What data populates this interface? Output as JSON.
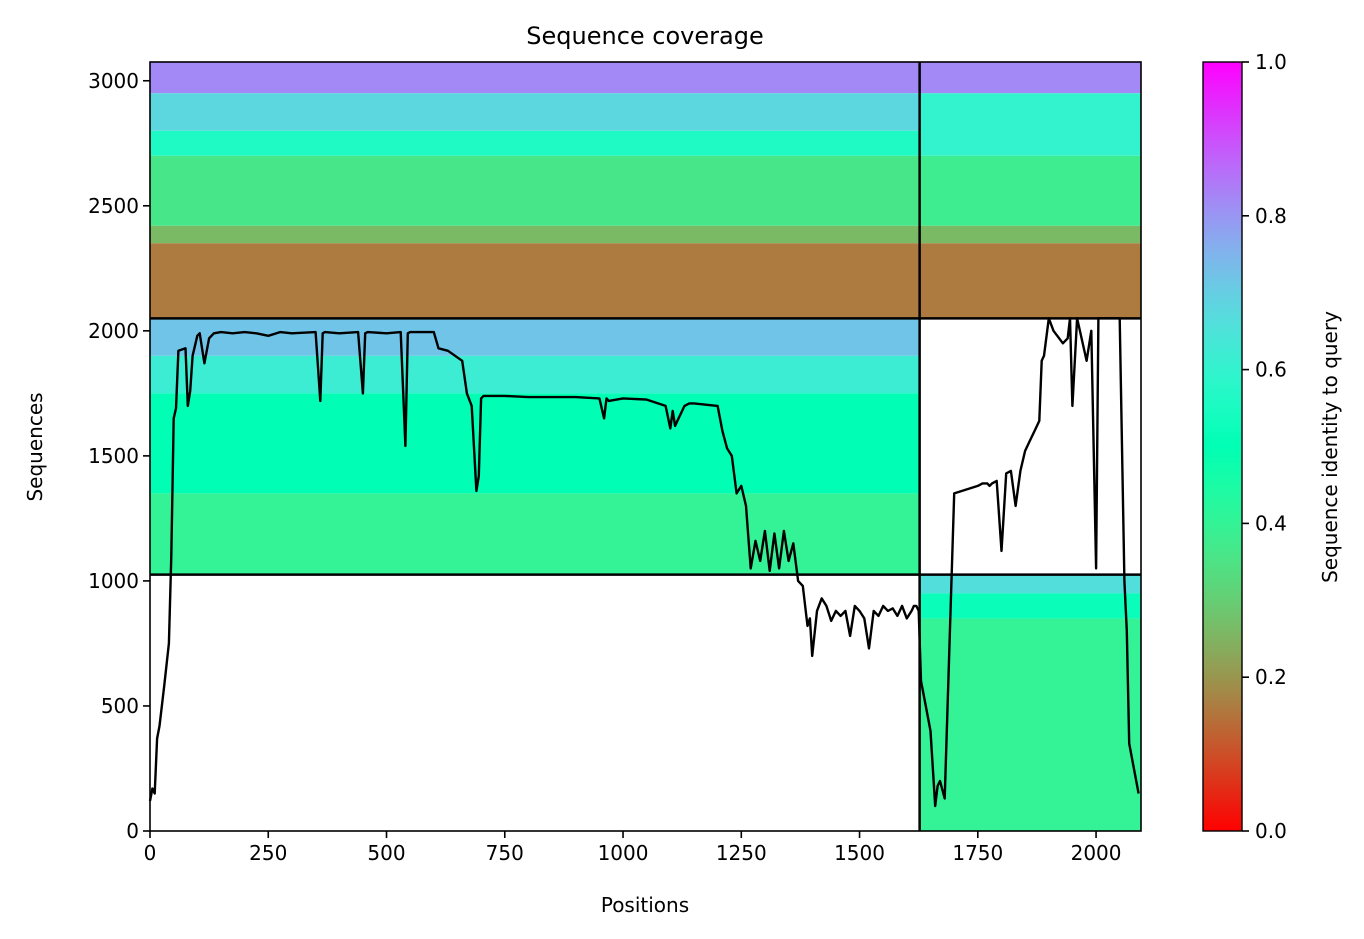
{
  "chart_data": {
    "type": "heatmap",
    "title": "Sequence coverage",
    "xlabel": "Positions",
    "ylabel": "Sequences",
    "xlim": [
      0,
      2095
    ],
    "ylim": [
      0,
      3075
    ],
    "x_ticks": [
      0,
      250,
      500,
      750,
      1000,
      1250,
      1500,
      1750,
      2000
    ],
    "x_tick_labels": [
      "0",
      "250",
      "500",
      "750",
      "1000",
      "1250",
      "1500",
      "1750",
      "2000"
    ],
    "y_ticks": [
      0,
      500,
      1000,
      1500,
      2000,
      2500,
      3000
    ],
    "y_tick_labels": [
      "0",
      "500",
      "1000",
      "1500",
      "2000",
      "2500",
      "3000"
    ],
    "colorbar": {
      "label": "Sequence identity to query",
      "range": [
        0.0,
        1.0
      ],
      "ticks": [
        0.0,
        0.2,
        0.4,
        0.6,
        0.8,
        1.0
      ],
      "tick_labels": [
        "0.0",
        "0.2",
        "0.4",
        "0.6",
        "0.8",
        "1.0"
      ],
      "colormap": "rainbow_r"
    },
    "block_boundaries": {
      "x_positions": [
        1627
      ],
      "y_sequences": [
        1025,
        2050
      ]
    },
    "coverage_blocks": [
      {
        "x_range": [
          0,
          1627
        ],
        "y_range": [
          2050,
          3075
        ],
        "identity_bands": [
          {
            "y_range": [
              2950,
              3075
            ],
            "identity": 0.82
          },
          {
            "y_range": [
              2800,
              2950
            ],
            "identity": 0.68
          },
          {
            "y_range": [
              2700,
              2800
            ],
            "identity": 0.56
          },
          {
            "y_range": [
              2420,
              2700
            ],
            "identity": 0.36
          },
          {
            "y_range": [
              2350,
              2420
            ],
            "identity": 0.26
          },
          {
            "y_range": [
              2050,
              2350
            ],
            "identity": 0.16
          }
        ]
      },
      {
        "x_range": [
          1627,
          2095
        ],
        "y_range": [
          2050,
          3075
        ],
        "identity_bands": [
          {
            "y_range": [
              2950,
              3075
            ],
            "identity": 0.82
          },
          {
            "y_range": [
              2700,
              2950
            ],
            "identity": 0.6
          },
          {
            "y_range": [
              2420,
              2700
            ],
            "identity": 0.38
          },
          {
            "y_range": [
              2350,
              2420
            ],
            "identity": 0.26
          },
          {
            "y_range": [
              2050,
              2350
            ],
            "identity": 0.16
          }
        ]
      },
      {
        "x_range": [
          0,
          1627
        ],
        "y_range": [
          1025,
          2050
        ],
        "identity_bands": [
          {
            "y_range": [
              1900,
              2050
            ],
            "identity": 0.72
          },
          {
            "y_range": [
              1750,
              1900
            ],
            "identity": 0.62
          },
          {
            "y_range": [
              1350,
              1750
            ],
            "identity": 0.5
          },
          {
            "y_range": [
              1025,
              1350
            ],
            "identity": 0.4
          }
        ]
      },
      {
        "x_range": [
          1627,
          2095
        ],
        "y_range": [
          0,
          1025
        ],
        "identity_bands": [
          {
            "y_range": [
              950,
              1025
            ],
            "identity": 0.66
          },
          {
            "y_range": [
              850,
              950
            ],
            "identity": 0.52
          },
          {
            "y_range": [
              0,
              850
            ],
            "identity": 0.4
          }
        ]
      }
    ],
    "coverage_line": {
      "x": [
        0,
        5,
        10,
        15,
        20,
        30,
        40,
        45,
        50,
        55,
        60,
        75,
        80,
        85,
        90,
        100,
        105,
        115,
        125,
        135,
        150,
        175,
        200,
        225,
        250,
        275,
        300,
        350,
        360,
        365,
        370,
        400,
        440,
        450,
        455,
        460,
        500,
        530,
        540,
        545,
        550,
        600,
        610,
        630,
        660,
        670,
        680,
        690,
        695,
        700,
        705,
        710,
        750,
        800,
        850,
        900,
        950,
        960,
        965,
        970,
        1000,
        1050,
        1090,
        1100,
        1105,
        1110,
        1115,
        1130,
        1140,
        1150,
        1200,
        1210,
        1220,
        1230,
        1240,
        1250,
        1260,
        1270,
        1280,
        1290,
        1300,
        1310,
        1320,
        1330,
        1340,
        1350,
        1360,
        1370,
        1380,
        1390,
        1395,
        1400,
        1410,
        1420,
        1430,
        1440,
        1450,
        1460,
        1470,
        1480,
        1490,
        1500,
        1510,
        1520,
        1530,
        1540,
        1550,
        1560,
        1570,
        1580,
        1590,
        1600,
        1610,
        1615,
        1620,
        1625,
        1630,
        1640,
        1650,
        1660,
        1665,
        1670,
        1680,
        1700,
        1750,
        1760,
        1770,
        1775,
        1780,
        1790,
        1800,
        1810,
        1820,
        1830,
        1840,
        1850,
        1860,
        1870,
        1880,
        1885,
        1890,
        1900,
        1910,
        1930,
        1940,
        1945,
        1950,
        1960,
        1980,
        1990,
        2000,
        2005,
        2010,
        2020,
        2040,
        2050,
        2060,
        2065,
        2070,
        2080,
        2090,
        2095
      ],
      "y": [
        120,
        170,
        150,
        370,
        420,
        580,
        750,
        1100,
        1650,
        1690,
        1920,
        1930,
        1700,
        1760,
        1900,
        1980,
        1990,
        1870,
        1970,
        1990,
        1995,
        1990,
        1995,
        1990,
        1980,
        1995,
        1990,
        1995,
        1720,
        1990,
        1995,
        1990,
        1995,
        1750,
        1990,
        1995,
        1990,
        1995,
        1540,
        1990,
        1995,
        1995,
        1930,
        1920,
        1880,
        1750,
        1700,
        1360,
        1420,
        1730,
        1740,
        1740,
        1740,
        1735,
        1735,
        1735,
        1730,
        1650,
        1730,
        1720,
        1730,
        1725,
        1700,
        1610,
        1680,
        1620,
        1640,
        1700,
        1710,
        1710,
        1700,
        1600,
        1530,
        1500,
        1350,
        1380,
        1300,
        1050,
        1160,
        1080,
        1200,
        1040,
        1190,
        1050,
        1200,
        1080,
        1150,
        1000,
        980,
        820,
        850,
        700,
        880,
        930,
        900,
        840,
        880,
        860,
        880,
        780,
        900,
        880,
        850,
        730,
        880,
        860,
        900,
        880,
        890,
        860,
        900,
        850,
        880,
        900,
        900,
        880,
        600,
        500,
        400,
        100,
        180,
        200,
        130,
        1350,
        1380,
        1390,
        1390,
        1380,
        1390,
        1400,
        1120,
        1430,
        1440,
        1300,
        1440,
        1520,
        1560,
        1600,
        1640,
        1880,
        1900,
        2050,
        2000,
        1950,
        1970,
        2050,
        1700,
        2050,
        1880,
        2000,
        1050,
        2050,
        2050,
        2050,
        2050,
        2050,
        1000,
        800,
        350,
        250,
        150
      ]
    }
  }
}
